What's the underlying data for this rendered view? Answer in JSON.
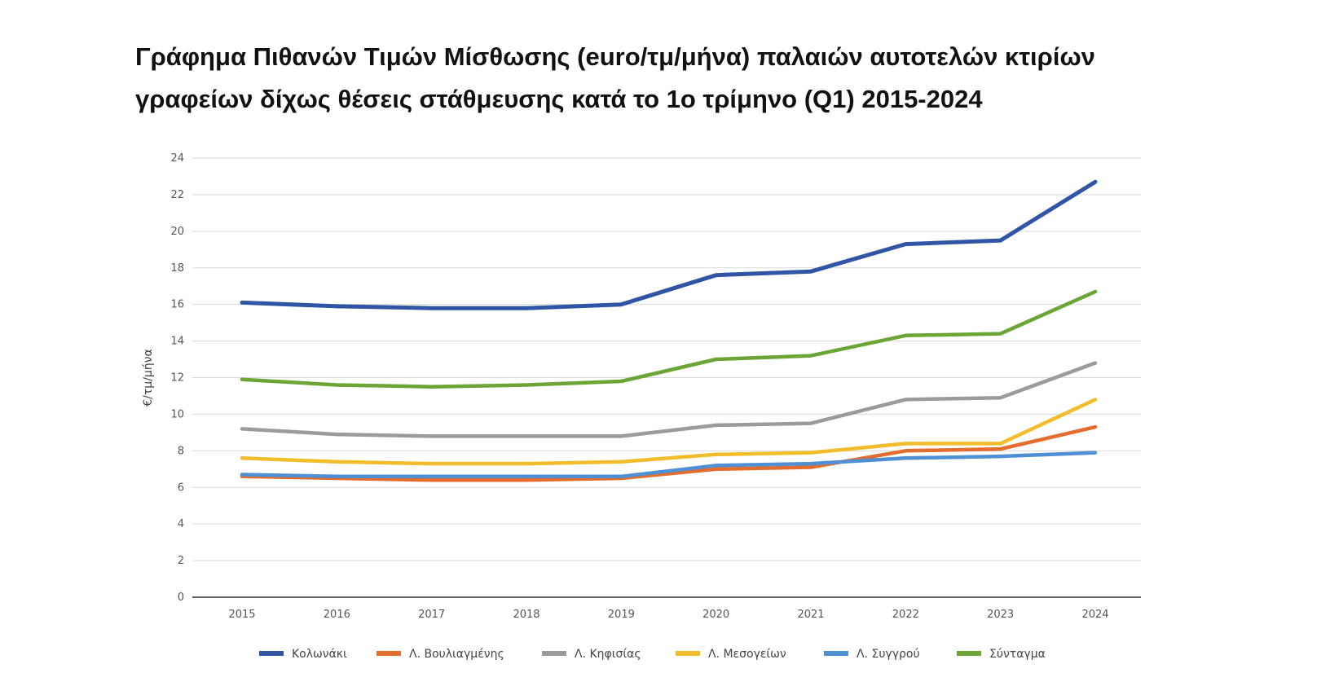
{
  "title_lines": [
    "Γράφημα Πιθανών Τιμών Μίσθωσης (euro/τμ/μήνα) παλαιών αυτοτελών κτιρίων",
    "γραφείων δίχως θέσεις στάθμευσης κατά το 1ο τρίμηνο (Q1) 2015-2024"
  ],
  "chart_data": {
    "type": "line",
    "title": "Γράφημα Πιθανών Τιμών Μίσθωσης (euro/τμ/μήνα) παλαιών αυτοτελών κτιρίων γραφείων δίχως θέσεις στάθμευσης κατά το 1ο τρίμηνο (Q1) 2015-2024",
    "xlabel": "",
    "ylabel": "€/τμ/μήνα",
    "categories": [
      "2015",
      "2016",
      "2017",
      "2018",
      "2019",
      "2020",
      "2021",
      "2022",
      "2023",
      "2024"
    ],
    "ylim": [
      0,
      24
    ],
    "yticks": [
      0,
      2,
      4,
      6,
      8,
      10,
      12,
      14,
      16,
      18,
      20,
      22,
      24
    ],
    "grid": true,
    "legend_position": "bottom",
    "series": [
      {
        "name": "Κολωνάκι",
        "color": "#2f55a4",
        "values": [
          16.1,
          15.9,
          15.8,
          15.8,
          16.0,
          17.6,
          17.8,
          19.3,
          19.5,
          22.7
        ]
      },
      {
        "name": "Λ. Βουλιαγμένης",
        "color": "#e36c2e",
        "values": [
          6.6,
          6.5,
          6.4,
          6.4,
          6.5,
          7.0,
          7.1,
          8.0,
          8.1,
          9.3
        ]
      },
      {
        "name": "Λ. Κηφισίας",
        "color": "#9b9b9b",
        "values": [
          9.2,
          8.9,
          8.8,
          8.8,
          8.8,
          9.4,
          9.5,
          10.8,
          10.9,
          12.8
        ]
      },
      {
        "name": "Λ. Μεσογείων",
        "color": "#f2bd2c",
        "values": [
          7.6,
          7.4,
          7.3,
          7.3,
          7.4,
          7.8,
          7.9,
          8.4,
          8.4,
          10.8
        ]
      },
      {
        "name": "Λ. Συγγρού",
        "color": "#4e90d3",
        "values": [
          6.7,
          6.6,
          6.6,
          6.6,
          6.6,
          7.2,
          7.3,
          7.6,
          7.7,
          7.9
        ]
      },
      {
        "name": "Σύνταγμα",
        "color": "#6aa535",
        "values": [
          11.9,
          11.6,
          11.5,
          11.6,
          11.8,
          13.0,
          13.2,
          14.3,
          14.4,
          16.7
        ]
      }
    ]
  }
}
